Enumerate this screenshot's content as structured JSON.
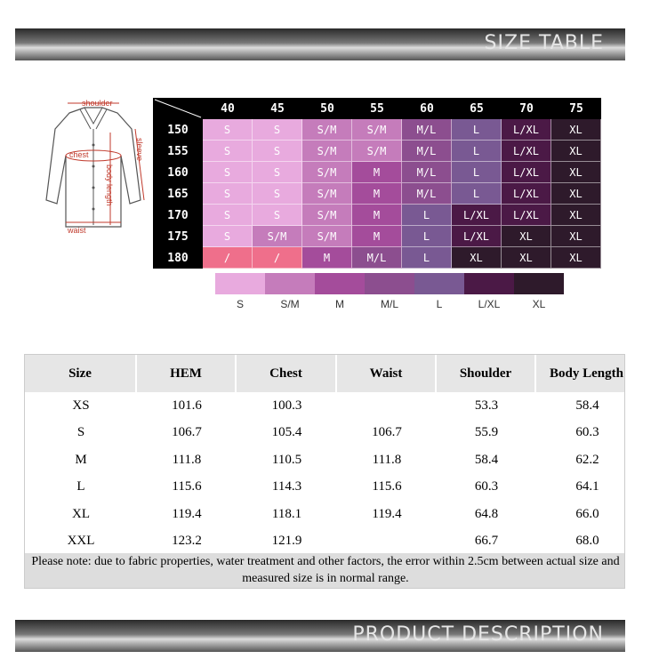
{
  "header": {
    "title": "SIZE TABLE"
  },
  "diagram": {
    "shoulder": "shoulder",
    "chest": "chest",
    "sleeve": "sleeve",
    "body_length": "body length",
    "waist": "waist"
  },
  "size_grid": {
    "columns": [
      "40",
      "45",
      "50",
      "55",
      "60",
      "65",
      "70",
      "75"
    ],
    "rows": [
      {
        "label": "150",
        "cells": [
          "S",
          "S",
          "S/M",
          "S/M",
          "M/L",
          "L",
          "L/XL",
          "XL"
        ]
      },
      {
        "label": "155",
        "cells": [
          "S",
          "S",
          "S/M",
          "S/M",
          "M/L",
          "L",
          "L/XL",
          "XL"
        ]
      },
      {
        "label": "160",
        "cells": [
          "S",
          "S",
          "S/M",
          "M",
          "M/L",
          "L",
          "L/XL",
          "XL"
        ]
      },
      {
        "label": "165",
        "cells": [
          "S",
          "S",
          "S/M",
          "M",
          "M/L",
          "L",
          "L/XL",
          "XL"
        ]
      },
      {
        "label": "170",
        "cells": [
          "S",
          "S",
          "S/M",
          "M",
          "L",
          "L/XL",
          "L/XL",
          "XL"
        ]
      },
      {
        "label": "175",
        "cells": [
          "S",
          "S/M",
          "S/M",
          "M",
          "L",
          "L/XL",
          "XL",
          "XL"
        ]
      },
      {
        "label": "180",
        "cells": [
          "/",
          "/",
          "M",
          "M/L",
          "L",
          "XL",
          "XL",
          "XL"
        ]
      }
    ]
  },
  "legend": [
    {
      "label": "S",
      "color": "#e8aade"
    },
    {
      "label": "S/M",
      "color": "#c57cbb"
    },
    {
      "label": "M",
      "color": "#a44c9b"
    },
    {
      "label": "M/L",
      "color": "#8c4e8f"
    },
    {
      "label": "L",
      "color": "#795993"
    },
    {
      "label": "L/XL",
      "color": "#4b1946"
    },
    {
      "label": "XL",
      "color": "#2e1a2b"
    }
  ],
  "table": {
    "headers": [
      "Size",
      "HEM",
      "Chest",
      "Waist",
      "Shoulder",
      "Body Length"
    ],
    "rows": [
      [
        "XS",
        "101.6",
        "100.3",
        null,
        "53.3",
        "58.4"
      ],
      [
        "S",
        "106.7",
        "105.4",
        "106.7",
        "55.9",
        "60.3"
      ],
      [
        "M",
        "111.8",
        "110.5",
        "111.8",
        "58.4",
        "62.2"
      ],
      [
        "L",
        "115.6",
        "114.3",
        "115.6",
        "60.3",
        "64.1"
      ],
      [
        "XL",
        "119.4",
        "118.1",
        "119.4",
        "64.8",
        "66.0"
      ],
      [
        "XXL",
        "123.2",
        "121.9",
        null,
        "66.7",
        "68.0"
      ]
    ],
    "note": "Please note: due to fabric properties, water treatment and other factors, the error within 2.5cm between actual size and measured size is in normal range."
  },
  "footer": {
    "title": "PRODUCT DESCRIPTION"
  }
}
